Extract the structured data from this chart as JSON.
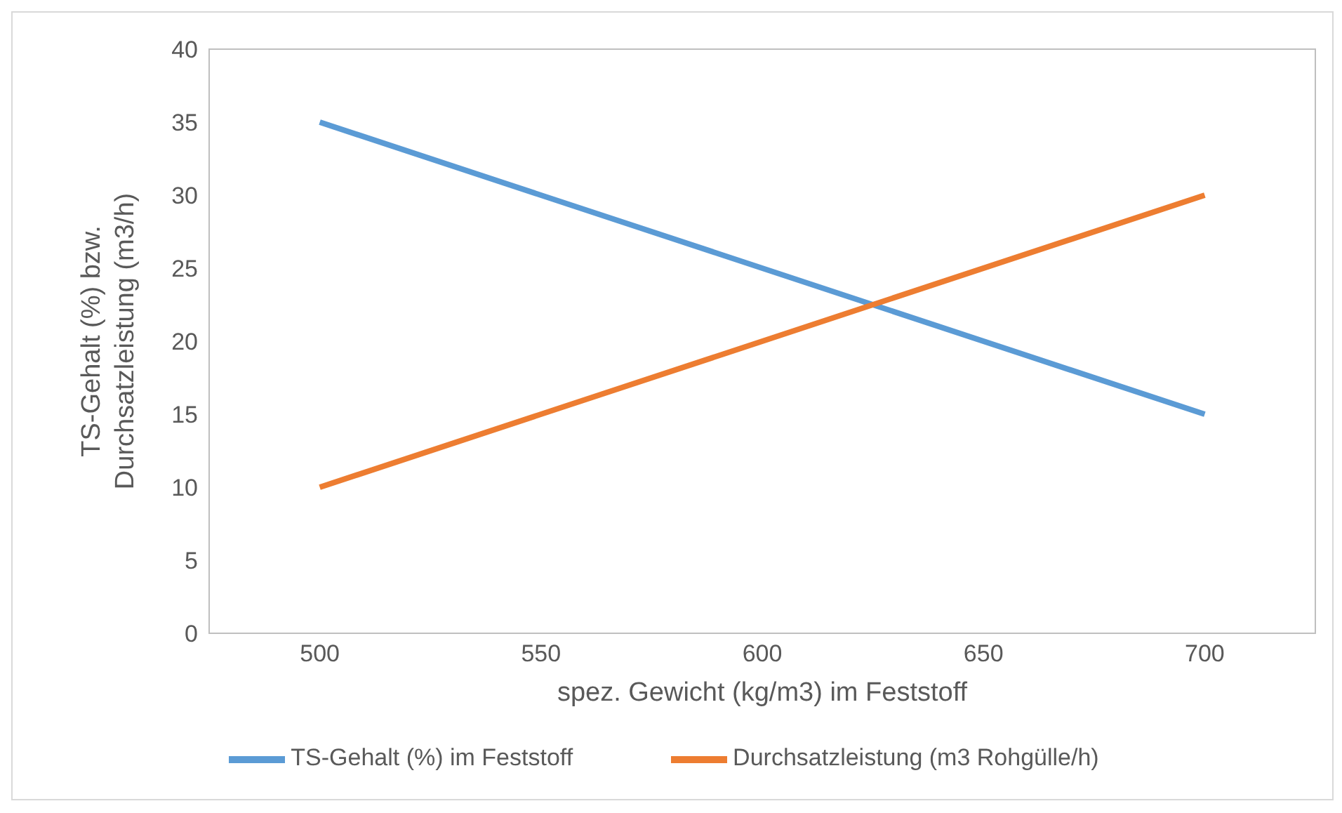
{
  "chart_data": {
    "type": "line",
    "xlabel": "spez. Gewicht (kg/m3) im Feststoff",
    "ylabel": "TS-Gehalt (%) bzw. Durchsatzleistung (m3/h)",
    "x": [
      500,
      700
    ],
    "series": [
      {
        "name": "TS-Gehalt (%) im Feststoff",
        "color": "#5b9bd5",
        "values": [
          35,
          15
        ]
      },
      {
        "name": "Durchsatzleistung (m3 Rohgülle/h)",
        "color": "#ed7d31",
        "values": [
          10,
          30
        ]
      }
    ],
    "xlim": [
      475,
      725
    ],
    "xticks": [
      500,
      550,
      600,
      650,
      700
    ],
    "ylim": [
      0,
      40
    ],
    "yticks": [
      0,
      5,
      10,
      15,
      20,
      25,
      30,
      35,
      40
    ],
    "grid": false,
    "legend": "bottom",
    "marker": "none",
    "line_style": "solid"
  }
}
